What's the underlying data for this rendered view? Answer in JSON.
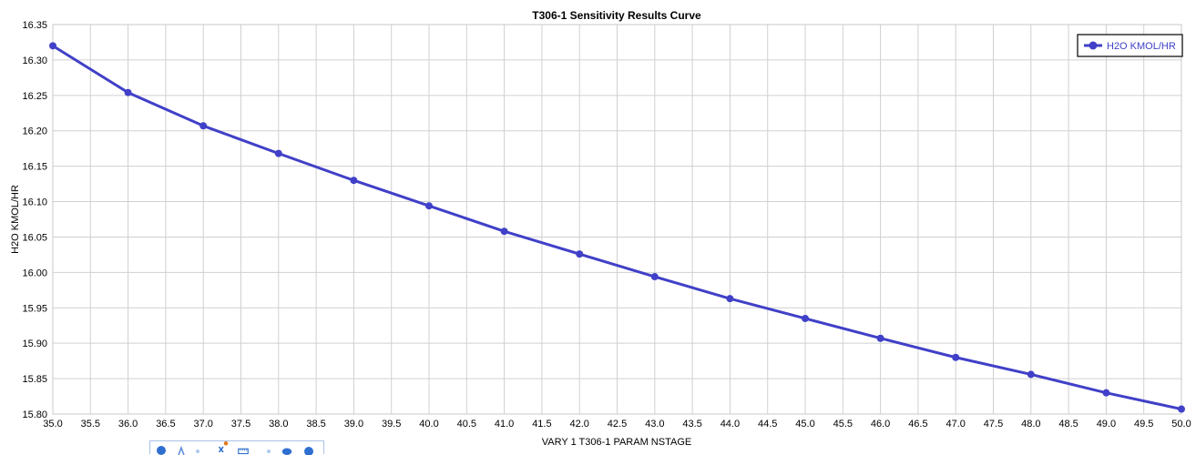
{
  "chart_data": {
    "type": "line",
    "title": "T306-1 Sensitivity Results Curve",
    "xlabel": "VARY  1 T306-1 PARAM NSTAGE",
    "ylabel": "H2O KMOL/HR",
    "xlim": [
      35.0,
      50.0
    ],
    "ylim": [
      15.8,
      16.35
    ],
    "xticks": [
      "35.0",
      "35.5",
      "36.0",
      "36.5",
      "37.0",
      "37.5",
      "38.0",
      "38.5",
      "39.0",
      "39.5",
      "40.0",
      "40.5",
      "41.0",
      "41.5",
      "42.0",
      "42.5",
      "43.0",
      "43.5",
      "44.0",
      "44.5",
      "45.0",
      "45.5",
      "46.0",
      "46.5",
      "47.0",
      "47.5",
      "48.0",
      "48.5",
      "49.0",
      "49.5",
      "50.0"
    ],
    "yticks": [
      "15.80",
      "15.85",
      "15.90",
      "15.95",
      "16.00",
      "16.05",
      "16.10",
      "16.15",
      "16.20",
      "16.25",
      "16.30",
      "16.35"
    ],
    "grid": true,
    "legend_position": "top-right",
    "series": [
      {
        "name": "H2O KMOL/HR",
        "color": "#4040c8",
        "x": [
          35,
          36,
          37,
          38,
          39,
          40,
          41,
          42,
          43,
          44,
          45,
          46,
          47,
          48,
          49,
          50
        ],
        "y": [
          16.32,
          16.254,
          16.207,
          16.168,
          16.13,
          16.094,
          16.058,
          16.026,
          15.994,
          15.963,
          15.935,
          15.907,
          15.88,
          15.856,
          15.83,
          15.807
        ]
      }
    ]
  }
}
